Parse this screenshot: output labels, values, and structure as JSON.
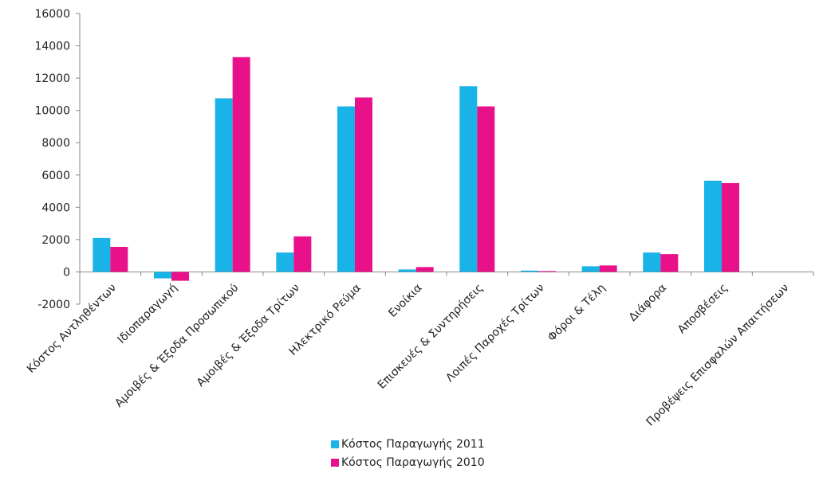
{
  "chart_data": {
    "type": "bar",
    "categories": [
      "Κόστος Αντληθέντων",
      "Ιδιοπαραγωγή",
      "Αμοιβές & Έξοδα Προσωπικού",
      "Αμοιβές & Έξοδα Τρίτων",
      "Ηλεκτρικό Ρεύμα",
      "Ενοίκια",
      "Επισκευές & Συντηρήσεις",
      "Λοιπές Παροχές Τρίτων",
      "Φόροι & Τέλη",
      "Διάφορα",
      "Αποσβέσεις",
      "Προβέψεις Επισφαλών Απαιτήσεων"
    ],
    "series": [
      {
        "name": "Κόστος Παραγωγής 2011",
        "color": "#1ab3e8",
        "values": [
          2100,
          -400,
          10750,
          1200,
          10250,
          150,
          11500,
          80,
          350,
          1200,
          5650,
          0
        ]
      },
      {
        "name": "Κόστος Παραγωγής 2010",
        "color": "#e8118a",
        "values": [
          1550,
          -550,
          13300,
          2200,
          10800,
          300,
          10250,
          50,
          400,
          1100,
          5500,
          0
        ]
      }
    ],
    "ylim": [
      -2000,
      16000
    ],
    "yticks": [
      -2000,
      0,
      2000,
      4000,
      6000,
      8000,
      10000,
      12000,
      14000,
      16000
    ],
    "grid": false,
    "legend_position": "bottom"
  }
}
